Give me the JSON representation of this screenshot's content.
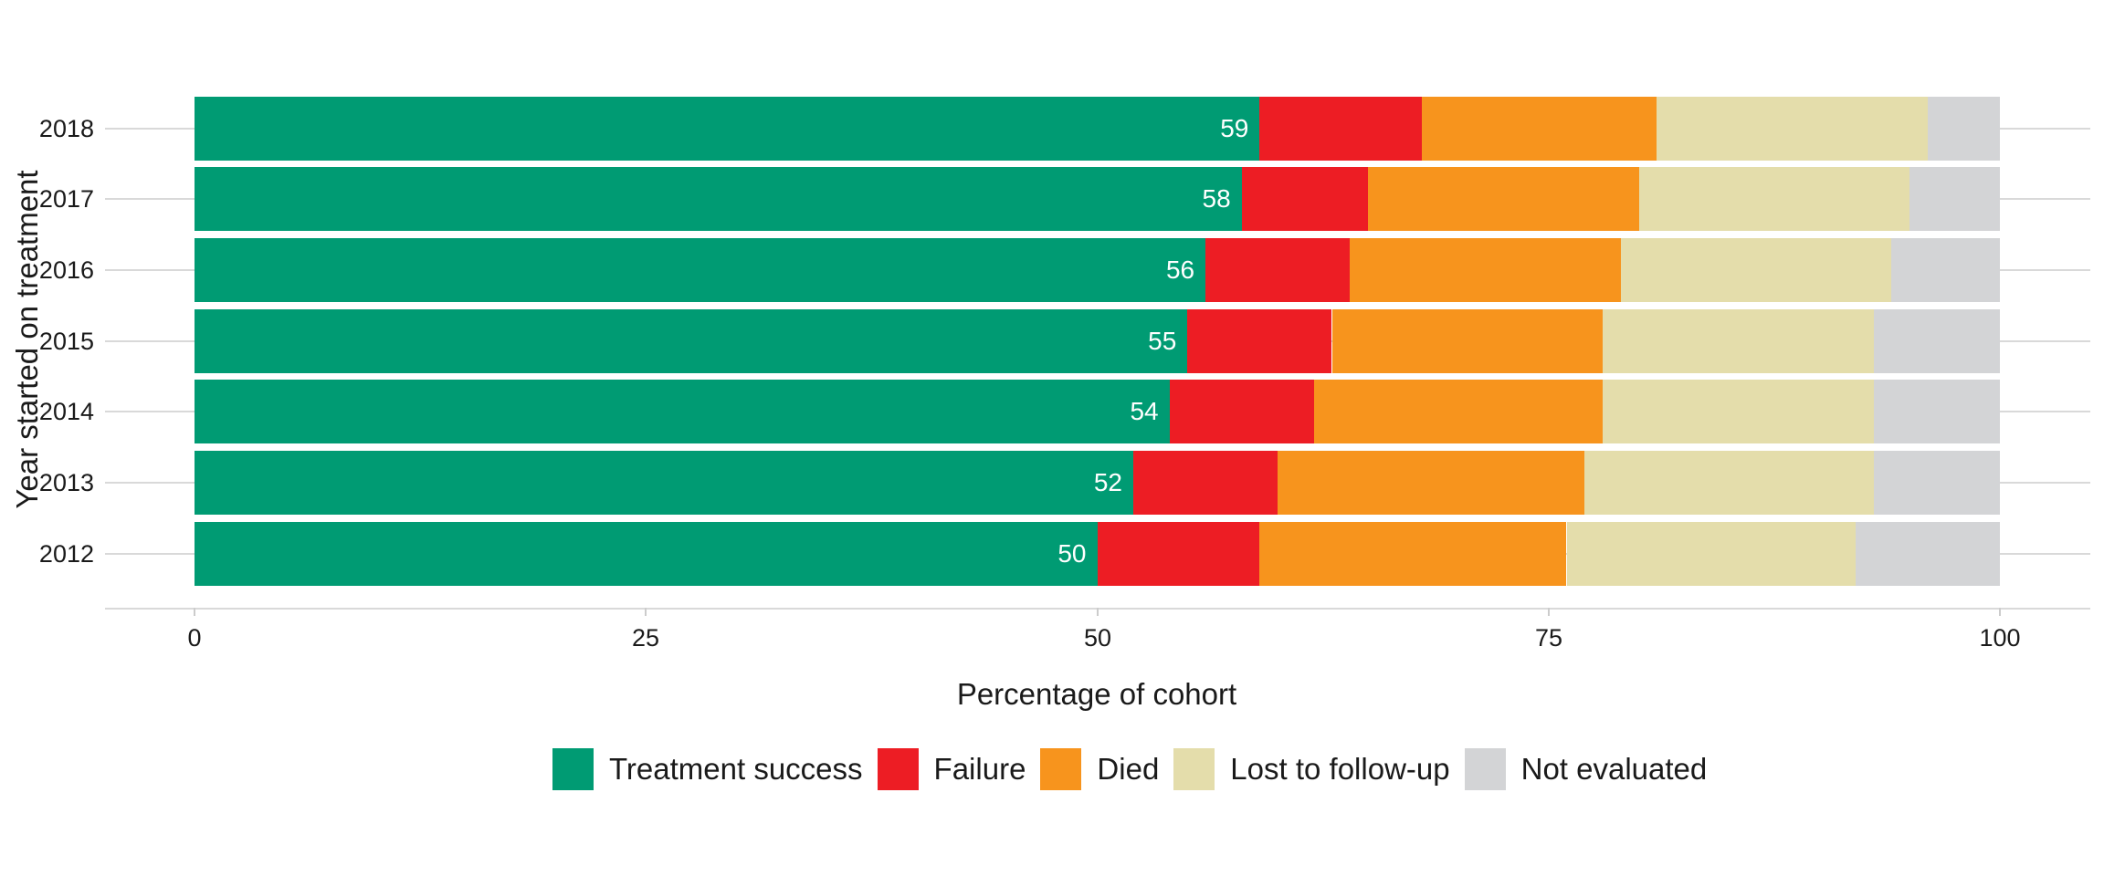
{
  "chart_data": {
    "type": "bar",
    "orientation": "horizontal-stacked",
    "title": "",
    "xlabel": "Percentage of cohort",
    "ylabel": "Year started on treatment",
    "xlim": [
      0,
      100
    ],
    "x_ticks": [
      0,
      25,
      50,
      75,
      100
    ],
    "grid": "horizontal-only",
    "legend_position": "bottom",
    "categories": [
      "2018",
      "2017",
      "2016",
      "2015",
      "2014",
      "2013",
      "2012"
    ],
    "series": [
      {
        "name": "Treatment success",
        "color": "#009b73",
        "values": [
          59,
          58,
          56,
          55,
          54,
          52,
          50
        ],
        "show_value_label": true
      },
      {
        "name": "Failure",
        "color": "#ed1d24",
        "values": [
          9,
          7,
          8,
          8,
          8,
          8,
          9
        ],
        "show_value_label": false
      },
      {
        "name": "Died",
        "color": "#f7941d",
        "values": [
          13,
          15,
          15,
          15,
          16,
          17,
          17
        ],
        "show_value_label": false
      },
      {
        "name": "Lost to follow-up",
        "color": "#e4ddab",
        "values": [
          15,
          15,
          15,
          15,
          15,
          16,
          16
        ],
        "show_value_label": false
      },
      {
        "name": "Not evaluated",
        "color": "#d3d4d6",
        "values": [
          4,
          5,
          6,
          7,
          7,
          7,
          8
        ],
        "show_value_label": false
      }
    ],
    "bar_value_labels": [
      "59",
      "58",
      "56",
      "55",
      "54",
      "52",
      "50"
    ]
  },
  "colors": {
    "background": "#ffffff",
    "gridline": "#d9d9d9",
    "axis_line": "#d9d9d9",
    "tick": "#cccccc",
    "text": "#1a1a1a",
    "bar_label_text": "#ffffff"
  },
  "layout_values": {
    "x_axis_title": "Percentage of cohort",
    "y_axis_title": "Year started on treatment"
  },
  "legend": {
    "items": [
      {
        "label": "Treatment success",
        "color": "#009b73"
      },
      {
        "label": "Failure",
        "color": "#ed1d24"
      },
      {
        "label": "Died",
        "color": "#f7941d"
      },
      {
        "label": "Lost to follow-up",
        "color": "#e4ddab"
      },
      {
        "label": "Not evaluated",
        "color": "#d3d4d6"
      }
    ]
  }
}
